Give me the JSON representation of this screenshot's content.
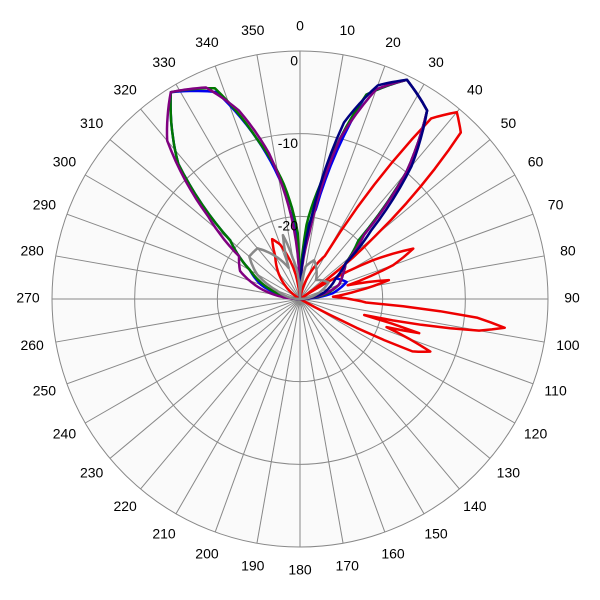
{
  "chart_data": {
    "type": "polar",
    "angle_unit": "degrees",
    "angle_direction": "clockwise",
    "zero_at": "top",
    "angle_ticks": [
      0,
      10,
      20,
      30,
      40,
      50,
      60,
      70,
      80,
      90,
      100,
      110,
      120,
      130,
      140,
      150,
      160,
      170,
      180,
      190,
      200,
      210,
      220,
      230,
      240,
      250,
      260,
      270,
      280,
      290,
      300,
      310,
      320,
      330,
      340,
      350
    ],
    "radial_ticks": [
      0,
      -10,
      -20
    ],
    "radial_range": [
      -30,
      0
    ],
    "grid": true,
    "colors": {
      "background": "#fafafa",
      "grid": "#888888",
      "red": "#ee0000",
      "blue": "#0000ee",
      "green": "#007700",
      "purple": "#800080",
      "gray": "#888888",
      "navy": "#000080"
    },
    "series": [
      {
        "color": "#ee0000",
        "points": [
          [
            0,
            -30
          ],
          [
            10,
            -30
          ],
          [
            20,
            -27
          ],
          [
            30,
            -24
          ],
          [
            36,
            -3
          ],
          [
            40,
            -0.5
          ],
          [
            44,
            -2
          ],
          [
            50,
            -18
          ],
          [
            56,
            -30
          ],
          [
            62,
            -20
          ],
          [
            66,
            -15
          ],
          [
            70,
            -18
          ],
          [
            74,
            -24
          ],
          [
            78,
            -19
          ],
          [
            82,
            -23
          ],
          [
            86,
            -26
          ],
          [
            90,
            -24
          ],
          [
            93,
            -22
          ],
          [
            96,
            -8.5
          ],
          [
            98,
            -5
          ],
          [
            100,
            -8
          ],
          [
            104,
            -22
          ],
          [
            106,
            -15
          ],
          [
            108,
            -19
          ],
          [
            112,
            -13
          ],
          [
            115,
            -15
          ],
          [
            118,
            -26
          ],
          [
            120,
            -30
          ],
          [
            180,
            -30
          ],
          [
            240,
            -30
          ],
          [
            270,
            -30
          ],
          [
            300,
            -30
          ],
          [
            330,
            -24
          ],
          [
            335,
            -22
          ],
          [
            340,
            -23
          ],
          [
            350,
            -27
          ],
          [
            355,
            -30
          ]
        ]
      },
      {
        "color": "#0000ee",
        "points": [
          [
            0,
            -30
          ],
          [
            5,
            -22
          ],
          [
            10,
            -19
          ],
          [
            18,
            -4
          ],
          [
            26,
            -0.5
          ],
          [
            34,
            -2.5
          ],
          [
            40,
            -10
          ],
          [
            45,
            -20
          ],
          [
            52,
            -23
          ],
          [
            60,
            -25
          ],
          [
            70,
            -24
          ],
          [
            80,
            -26
          ],
          [
            90,
            -30
          ],
          [
            180,
            -30
          ],
          [
            270,
            -30
          ],
          [
            280,
            -28
          ],
          [
            290,
            -25
          ],
          [
            300,
            -23
          ],
          [
            310,
            -19
          ],
          [
            318,
            -8
          ],
          [
            328,
            -0.5
          ],
          [
            338,
            -3
          ],
          [
            345,
            -10
          ],
          [
            350,
            -15
          ],
          [
            355,
            -19
          ],
          [
            358,
            -26
          ]
        ]
      },
      {
        "color": "#007700",
        "points": [
          [
            0,
            -30
          ],
          [
            5,
            -21
          ],
          [
            10,
            -16
          ],
          [
            18,
            -4
          ],
          [
            26,
            -0.5
          ],
          [
            34,
            -2.5
          ],
          [
            40,
            -10
          ],
          [
            45,
            -20
          ],
          [
            52,
            -23
          ],
          [
            60,
            -24
          ],
          [
            70,
            -25
          ],
          [
            80,
            -27
          ],
          [
            90,
            -30
          ],
          [
            180,
            -30
          ],
          [
            270,
            -30
          ],
          [
            285,
            -27
          ],
          [
            300,
            -23
          ],
          [
            310,
            -19
          ],
          [
            318,
            -8
          ],
          [
            328,
            -0.5
          ],
          [
            338,
            -2.5
          ],
          [
            345,
            -10
          ],
          [
            352,
            -16
          ],
          [
            358,
            -22
          ]
        ]
      },
      {
        "color": "#800080",
        "points": [
          [
            0,
            -30
          ],
          [
            8,
            -22
          ],
          [
            14,
            -10
          ],
          [
            20,
            -3
          ],
          [
            26,
            -0.5
          ],
          [
            34,
            -2.5
          ],
          [
            40,
            -10
          ],
          [
            45,
            -19
          ],
          [
            52,
            -23
          ],
          [
            60,
            -24
          ],
          [
            70,
            -25
          ],
          [
            90,
            -30
          ],
          [
            180,
            -30
          ],
          [
            270,
            -30
          ],
          [
            285,
            -25
          ],
          [
            295,
            -22
          ],
          [
            305,
            -21
          ],
          [
            312,
            -15
          ],
          [
            320,
            -5
          ],
          [
            328,
            -0.5
          ],
          [
            336,
            -2
          ],
          [
            342,
            -6
          ],
          [
            348,
            -12
          ],
          [
            354,
            -20
          ],
          [
            358,
            -26
          ]
        ]
      },
      {
        "color": "#000080",
        "points": [
          [
            0,
            -30
          ],
          [
            8,
            -20
          ],
          [
            14,
            -8
          ],
          [
            20,
            -2.5
          ],
          [
            26,
            -0.5
          ],
          [
            34,
            -2.5
          ],
          [
            40,
            -9
          ],
          [
            46,
            -18
          ],
          [
            52,
            -23
          ],
          [
            60,
            -25
          ],
          [
            75,
            -27
          ],
          [
            90,
            -30
          ],
          [
            180,
            -30
          ],
          [
            270,
            -30
          ]
        ]
      },
      {
        "color": "#888888",
        "points": [
          [
            0,
            -30
          ],
          [
            10,
            -26
          ],
          [
            20,
            -25
          ],
          [
            40,
            -27
          ],
          [
            60,
            -26
          ],
          [
            90,
            -30
          ],
          [
            180,
            -30
          ],
          [
            270,
            -30
          ],
          [
            290,
            -27
          ],
          [
            300,
            -24
          ],
          [
            310,
            -22
          ],
          [
            320,
            -22
          ],
          [
            330,
            -24
          ],
          [
            340,
            -26
          ],
          [
            345,
            -22
          ],
          [
            350,
            -25
          ],
          [
            355,
            -27
          ]
        ]
      }
    ]
  }
}
